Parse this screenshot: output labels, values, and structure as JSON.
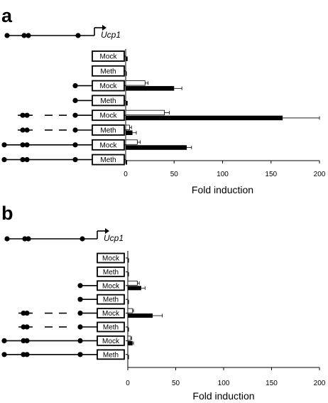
{
  "chart_data": [
    {
      "panel": "a",
      "type": "bar",
      "gene": "Ucp1",
      "xlabel": "Fold induction",
      "xlim": [
        0,
        200
      ],
      "xticks": [
        0,
        50,
        100,
        150,
        200
      ],
      "rows": [
        {
          "construct": "Mock",
          "open": 0,
          "filled": 2,
          "err_open": 0,
          "err_filled": 0
        },
        {
          "construct": "Meth",
          "open": 0,
          "filled": 0.5,
          "err_open": 0,
          "err_filled": 0
        },
        {
          "construct": "Mock",
          "open": 20,
          "filled": 50,
          "err_open": 3,
          "err_filled": 8
        },
        {
          "construct": "Meth",
          "open": 0,
          "filled": 2,
          "err_open": 0,
          "err_filled": 0
        },
        {
          "construct": "Mock",
          "open": 40,
          "filled": 162,
          "err_open": 5,
          "err_filled": 38
        },
        {
          "construct": "Meth",
          "open": 4,
          "filled": 7,
          "err_open": 2,
          "err_filled": 4
        },
        {
          "construct": "Mock",
          "open": 12,
          "filled": 63,
          "err_open": 3,
          "err_filled": 5
        },
        {
          "construct": "Meth",
          "open": 0,
          "filled": 1.5,
          "err_open": 0,
          "err_filled": 0
        }
      ]
    },
    {
      "panel": "b",
      "type": "bar",
      "gene": "Ucp1",
      "xlabel": "Fold induction",
      "xlim": [
        0,
        200
      ],
      "xticks": [
        0,
        50,
        100,
        150,
        200
      ],
      "rows": [
        {
          "construct": "Mock",
          "open": 0,
          "filled": 1,
          "err_open": 0,
          "err_filled": 0
        },
        {
          "construct": "Meth",
          "open": 0,
          "filled": 0.5,
          "err_open": 0,
          "err_filled": 0
        },
        {
          "construct": "Mock",
          "open": 10,
          "filled": 14,
          "err_open": 2,
          "err_filled": 4
        },
        {
          "construct": "Meth",
          "open": 0,
          "filled": 0.5,
          "err_open": 0,
          "err_filled": 0
        },
        {
          "construct": "Mock",
          "open": 5,
          "filled": 26,
          "err_open": 1,
          "err_filled": 10
        },
        {
          "construct": "Meth",
          "open": 0,
          "filled": 1,
          "err_open": 0,
          "err_filled": 0
        },
        {
          "construct": "Mock",
          "open": 3,
          "filled": 5,
          "err_open": 1,
          "err_filled": 1
        },
        {
          "construct": "Meth",
          "open": 0,
          "filled": 0.5,
          "err_open": 0,
          "err_filled": 0
        }
      ]
    }
  ]
}
